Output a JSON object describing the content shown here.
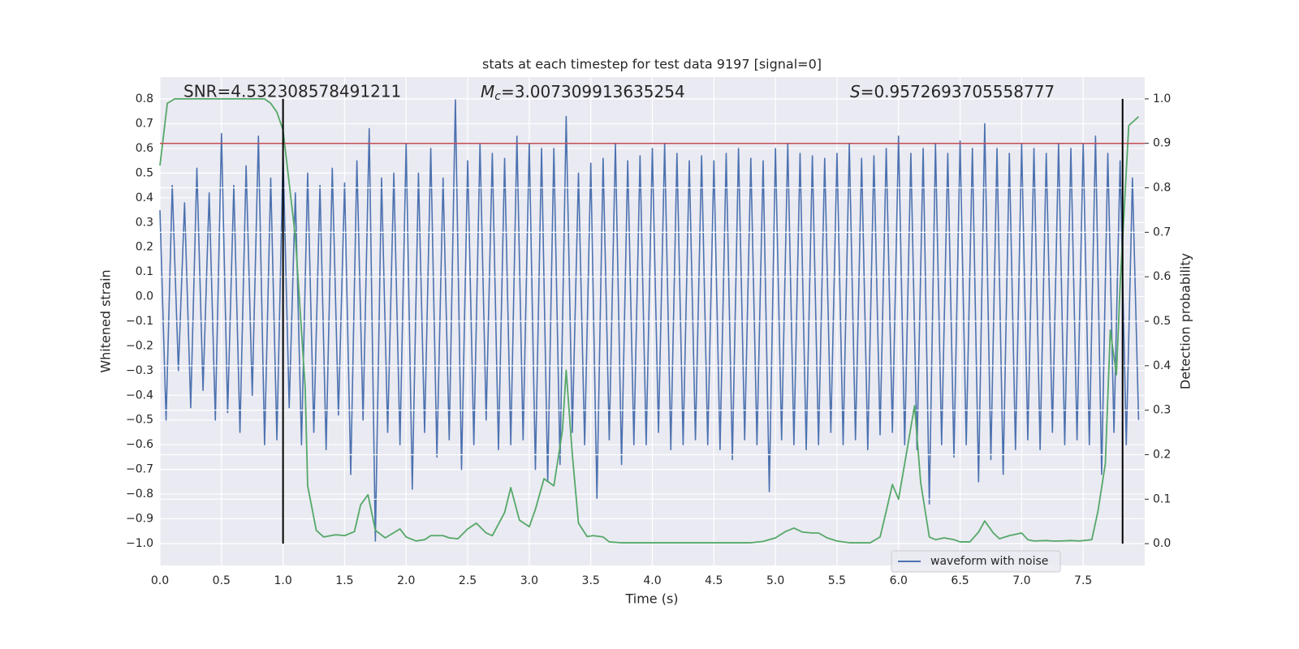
{
  "chart_data": {
    "type": "line",
    "title": "stats at each timestep for test data 9197 [signal=0]",
    "xlabel": "Time (s)",
    "ylabel": "Whitened strain",
    "y2label": "Detection probability",
    "annotations": [
      {
        "text": "SNR=4.532308578491211"
      },
      {
        "symbol": "M",
        "subscript": "c",
        "text": "=3.007309913635254"
      },
      {
        "symbol": "S",
        "text": "=0.9572693705558777"
      }
    ],
    "xlim": [
      0,
      8
    ],
    "ylim": [
      -1.089,
      0.889
    ],
    "y2lim": [
      -0.049,
      1.049
    ],
    "xticks": [
      {
        "value": 0,
        "label": "0.0"
      },
      0.5,
      {
        "value": 1,
        "label": "1.0"
      },
      1.5,
      {
        "value": 2,
        "label": "2.0"
      },
      2.5,
      {
        "value": 3,
        "label": "3.0"
      },
      3.5,
      {
        "value": 4,
        "label": "4.0"
      },
      4.5,
      {
        "value": 5,
        "label": "5.0"
      },
      5.5,
      {
        "value": 6,
        "label": "6.0"
      },
      6.5,
      {
        "value": 7,
        "label": "7.0"
      },
      7.5
    ],
    "yticks": [
      {
        "value": -1.0,
        "label": "−1.0"
      },
      {
        "value": -0.9,
        "label": "−0.9"
      },
      {
        "value": -0.8,
        "label": "−0.8"
      },
      {
        "value": -0.7,
        "label": "−0.7"
      },
      {
        "value": -0.6,
        "label": "−0.6"
      },
      {
        "value": -0.5,
        "label": "−0.5"
      },
      {
        "value": -0.4,
        "label": "−0.4"
      },
      {
        "value": -0.3,
        "label": "−0.3"
      },
      {
        "value": -0.2,
        "label": "−0.2"
      },
      {
        "value": -0.1,
        "label": "−0.1"
      },
      {
        "value": 0,
        "label": "0.0"
      },
      0.1,
      0.2,
      0.3,
      0.4,
      0.5,
      0.6,
      0.7,
      0.8
    ],
    "y2ticks": [
      {
        "value": 0,
        "label": "0.0"
      },
      0.1,
      0.2,
      0.3,
      0.4,
      0.5,
      0.6,
      0.7,
      0.8,
      0.9,
      {
        "value": 1,
        "label": "1.0"
      }
    ],
    "grid": true,
    "legend": "lower right",
    "series": [
      {
        "name": "waveform with noise",
        "color": "#4c72b0",
        "axis": "y",
        "x": [
          0,
          0.05,
          0.1,
          0.15,
          0.2,
          0.25,
          0.3,
          0.35,
          0.4,
          0.45,
          0.5,
          0.55,
          0.6,
          0.65,
          0.7,
          0.75,
          0.8,
          0.85,
          0.9,
          0.95,
          1,
          1.05,
          1.1,
          1.15,
          1.2,
          1.25,
          1.3,
          1.35,
          1.4,
          1.45,
          1.5,
          1.55,
          1.6,
          1.65,
          1.7,
          1.75,
          1.8,
          1.85,
          1.9,
          1.95,
          2,
          2.05,
          2.1,
          2.15,
          2.2,
          2.25,
          2.3,
          2.35,
          2.4,
          2.45,
          2.5,
          2.55,
          2.6,
          2.65,
          2.7,
          2.75,
          2.8,
          2.85,
          2.9,
          2.95,
          3,
          3.05,
          3.1,
          3.15,
          3.2,
          3.25,
          3.3,
          3.35,
          3.4,
          3.45,
          3.5,
          3.55,
          3.6,
          3.65,
          3.7,
          3.75,
          3.8,
          3.85,
          3.9,
          3.95,
          4,
          4.05,
          4.1,
          4.15,
          4.2,
          4.25,
          4.3,
          4.35,
          4.4,
          4.45,
          4.5,
          4.55,
          4.6,
          4.65,
          4.7,
          4.75,
          4.8,
          4.85,
          4.9,
          4.95,
          5,
          5.05,
          5.1,
          5.15,
          5.2,
          5.25,
          5.3,
          5.35,
          5.4,
          5.45,
          5.5,
          5.55,
          5.6,
          5.65,
          5.7,
          5.75,
          5.8,
          5.85,
          5.9,
          5.95,
          6,
          6.05,
          6.1,
          6.15,
          6.2,
          6.25,
          6.3,
          6.35,
          6.4,
          6.45,
          6.5,
          6.55,
          6.6,
          6.65,
          6.7,
          6.75,
          6.8,
          6.85,
          6.9,
          6.95,
          7,
          7.05,
          7.1,
          7.15,
          7.2,
          7.25,
          7.3,
          7.35,
          7.4,
          7.45,
          7.5,
          7.55,
          7.6,
          7.65,
          7.7,
          7.75,
          7.8,
          7.85,
          7.9,
          7.95
        ],
        "values": [
          0.35,
          -0.5,
          0.45,
          -0.3,
          0.38,
          -0.45,
          0.52,
          -0.38,
          0.42,
          -0.5,
          0.66,
          -0.47,
          0.45,
          -0.55,
          0.53,
          -0.4,
          0.65,
          -0.6,
          0.48,
          -0.58,
          0.58,
          -0.45,
          0.42,
          -0.6,
          0.5,
          -0.55,
          0.45,
          -0.62,
          0.52,
          -0.48,
          0.46,
          -0.72,
          0.55,
          -0.5,
          0.68,
          -0.99,
          0.48,
          -0.55,
          0.5,
          -0.6,
          0.62,
          -0.78,
          0.5,
          -0.55,
          0.6,
          -0.65,
          0.48,
          -0.58,
          0.8,
          -0.7,
          0.55,
          -0.6,
          0.62,
          -0.5,
          0.58,
          -0.62,
          0.56,
          -0.6,
          0.65,
          -0.58,
          0.62,
          -0.7,
          0.6,
          -0.75,
          0.6,
          -0.68,
          0.73,
          -0.55,
          0.5,
          -0.6,
          0.54,
          -0.82,
          0.56,
          -0.58,
          0.62,
          -0.68,
          0.55,
          -0.6,
          0.57,
          -0.6,
          0.6,
          -0.55,
          0.62,
          -0.62,
          0.58,
          -0.6,
          0.55,
          -0.58,
          0.57,
          -0.6,
          0.55,
          -0.62,
          0.58,
          -0.66,
          0.6,
          -0.58,
          0.56,
          -0.6,
          0.55,
          -0.79,
          0.6,
          -0.58,
          0.62,
          -0.6,
          0.58,
          -0.62,
          0.57,
          -0.6,
          0.56,
          -0.55,
          0.58,
          -0.6,
          0.62,
          -0.58,
          0.56,
          -0.62,
          0.57,
          -0.56,
          0.6,
          -0.55,
          0.65,
          -0.6,
          0.58,
          -0.62,
          0.6,
          -0.84,
          0.62,
          -0.6,
          0.58,
          -0.65,
          0.63,
          -0.6,
          0.6,
          -0.75,
          0.7,
          -0.66,
          0.6,
          -0.72,
          0.58,
          -0.62,
          0.62,
          -0.58,
          0.6,
          -0.62,
          0.58,
          -0.55,
          0.62,
          -0.6,
          0.6,
          -0.58,
          0.62,
          -0.6,
          0.65,
          -0.72,
          0.58,
          -0.55,
          0.55,
          -0.6,
          0.48,
          -0.5
        ]
      },
      {
        "color": "#55a868",
        "axis": "y2",
        "x": [
          0,
          0.06,
          0.12,
          0.2,
          0.4,
          0.6,
          0.85,
          0.9,
          0.95,
          1,
          1.1,
          1.18,
          1.2,
          1.27,
          1.33,
          1.43,
          1.5,
          1.58,
          1.63,
          1.69,
          1.75,
          1.83,
          1.95,
          2,
          2.08,
          2.15,
          2.2,
          2.3,
          2.35,
          2.42,
          2.5,
          2.57,
          2.65,
          2.7,
          2.8,
          2.85,
          2.92,
          3,
          3.05,
          3.12,
          3.2,
          3.27,
          3.3,
          3.35,
          3.4,
          3.47,
          3.52,
          3.6,
          3.65,
          3.75,
          4,
          4.4,
          4.8,
          4.9,
          5,
          5.08,
          5.15,
          5.22,
          5.3,
          5.35,
          5.42,
          5.5,
          5.6,
          5.77,
          5.85,
          5.9,
          5.95,
          6,
          6.05,
          6.13,
          6.18,
          6.25,
          6.3,
          6.37,
          6.45,
          6.5,
          6.58,
          6.65,
          6.7,
          6.77,
          6.82,
          6.9,
          7,
          7.05,
          7.1,
          7.2,
          7.25,
          7.32,
          7.4,
          7.47,
          7.57,
          7.62,
          7.68,
          7.72,
          7.77,
          7.8,
          7.87,
          7.95
        ],
        "values": [
          0.85,
          0.99,
          1,
          1,
          1,
          1,
          1,
          0.99,
          0.97,
          0.93,
          0.69,
          0.35,
          0.13,
          0.03,
          0.015,
          0.02,
          0.018,
          0.027,
          0.087,
          0.11,
          0.03,
          0.013,
          0.033,
          0.015,
          0.006,
          0.009,
          0.018,
          0.018,
          0.013,
          0.011,
          0.033,
          0.046,
          0.024,
          0.018,
          0.07,
          0.126,
          0.053,
          0.038,
          0.077,
          0.146,
          0.13,
          0.255,
          0.39,
          0.2,
          0.046,
          0.016,
          0.018,
          0.015,
          0.004,
          0.002,
          0.002,
          0.002,
          0.002,
          0.005,
          0.013,
          0.027,
          0.035,
          0.026,
          0.024,
          0.024,
          0.013,
          0.006,
          0.002,
          0.002,
          0.015,
          0.073,
          0.133,
          0.1,
          0.18,
          0.31,
          0.137,
          0.015,
          0.009,
          0.013,
          0.009,
          0.004,
          0.004,
          0.026,
          0.051,
          0.024,
          0.011,
          0.018,
          0.024,
          0.009,
          0.006,
          0.007,
          0.006,
          0.006,
          0.007,
          0.006,
          0.009,
          0.073,
          0.18,
          0.48,
          0.38,
          0.58,
          0.94,
          0.96
        ]
      }
    ],
    "hlines": [
      {
        "value": 0.9,
        "axis": "y2",
        "color": "#c44e52"
      }
    ],
    "vlines": [
      {
        "value": 1.0,
        "ymin": 0,
        "ymax": 1,
        "axis": "y2",
        "color": "#000000"
      },
      {
        "value": 7.82,
        "ymin": 0,
        "ymax": 1,
        "axis": "y2",
        "color": "#000000"
      }
    ]
  }
}
